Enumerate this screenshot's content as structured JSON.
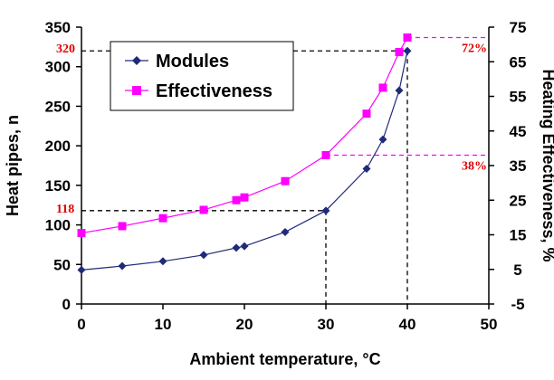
{
  "chart_data": {
    "type": "line",
    "title": "",
    "xlabel": "Ambient temperature, °C",
    "ylabel": "Heat pipes, n",
    "y2label": "Heating Effectiveness, %",
    "xlim": [
      0,
      50
    ],
    "ylim": [
      0,
      350
    ],
    "y2lim": [
      -5,
      75
    ],
    "x_ticks": [
      "0",
      "10",
      "20",
      "30",
      "40",
      "50"
    ],
    "y_ticks": [
      "0",
      "50",
      "100",
      "150",
      "200",
      "250",
      "300",
      "350"
    ],
    "y2_ticks": [
      "-5",
      "5",
      "15",
      "25",
      "35",
      "45",
      "55",
      "65",
      "75"
    ],
    "grid": false,
    "legend_position": "top-left",
    "series": [
      {
        "name": "Modules",
        "axis": "left",
        "color": "#1f2a7a",
        "marker": "diamond",
        "x": [
          0,
          5,
          10,
          15,
          19,
          20,
          25,
          30,
          35,
          37,
          39,
          40
        ],
        "y": [
          43,
          48,
          54,
          62,
          71,
          73,
          91,
          118,
          171,
          208,
          270,
          320
        ]
      },
      {
        "name": "Effectiveness",
        "axis": "right",
        "color": "#ff00ff",
        "marker": "square",
        "x": [
          0,
          5,
          10,
          15,
          19,
          20,
          25,
          30,
          35,
          37,
          39,
          40
        ],
        "y": [
          15.5,
          17.5,
          19.8,
          22.2,
          25,
          25.8,
          30.5,
          38,
          50,
          57.5,
          67.8,
          72
        ]
      }
    ],
    "annotations": [
      {
        "text": "320",
        "x": 40,
        "y": 320,
        "axis": "left",
        "side": "left",
        "color": "#e00000"
      },
      {
        "text": "118",
        "x": 30,
        "y": 118,
        "axis": "left",
        "side": "left",
        "color": "#e00000"
      },
      {
        "text": "72%",
        "x": 40,
        "y": 72,
        "axis": "right",
        "side": "right",
        "color": "#e00000"
      },
      {
        "text": "38%",
        "x": 30,
        "y": 38,
        "axis": "right",
        "side": "right",
        "color": "#e00000"
      }
    ]
  }
}
